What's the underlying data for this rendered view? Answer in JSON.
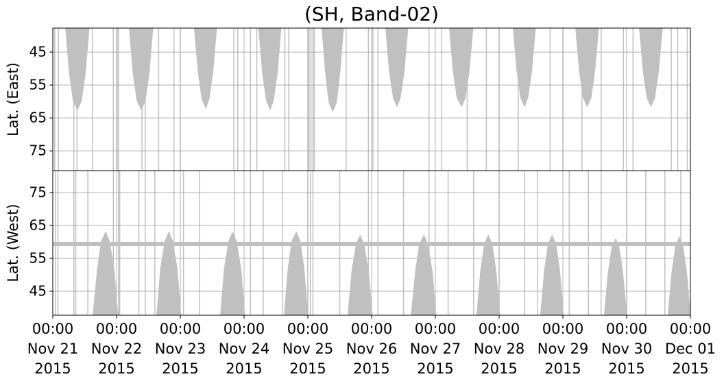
{
  "chart_data": [
    {
      "type": "coverage",
      "title": "(SH, Band-02)",
      "ylabel": "Lat. (East)",
      "ylim": [
        37.7,
        81
      ],
      "inverted": true,
      "yticks": [
        45,
        55,
        65,
        75
      ],
      "grid": true,
      "color": "#c0c0c0",
      "x": [
        0.2,
        0.26,
        0.32,
        0.385,
        0.45,
        0.51,
        0.57,
        null,
        1.2,
        1.26,
        1.32,
        1.39,
        1.45,
        1.51,
        1.57,
        null,
        2.22,
        2.28,
        2.34,
        2.4,
        2.45,
        2.51,
        2.57,
        null,
        3.23,
        3.29,
        3.35,
        3.41,
        3.46,
        3.52,
        3.58,
        null,
        4.22,
        4.28,
        4.33,
        4.39,
        4.45,
        4.5,
        4.56,
        null,
        5.22,
        5.28,
        5.34,
        5.4,
        5.45,
        5.51,
        5.57,
        null,
        6.22,
        6.28,
        6.34,
        6.41,
        6.47,
        6.53,
        6.59,
        null,
        7.22,
        7.28,
        7.34,
        7.4,
        7.45,
        7.51,
        7.57,
        null,
        8.2,
        8.26,
        8.32,
        8.38,
        8.44,
        8.5,
        8.56,
        null,
        9.2,
        9.26,
        9.32,
        9.38,
        9.44,
        9.5,
        9.56
      ],
      "values": [
        37.7,
        51.5,
        59.7,
        62.5,
        59.7,
        51.5,
        37.7,
        null,
        37.7,
        51.5,
        59.7,
        62.5,
        59.7,
        51.5,
        37.7,
        null,
        37.7,
        51.2,
        59.3,
        62,
        59.3,
        51.2,
        37.7,
        null,
        37.7,
        51.5,
        59.7,
        62.5,
        59.7,
        51.5,
        37.7,
        null,
        37.7,
        51.8,
        60.2,
        63,
        60.2,
        51.8,
        37.7,
        null,
        37.7,
        50.9,
        58.9,
        61.5,
        58.9,
        50.9,
        37.7,
        null,
        37.7,
        50.9,
        58.9,
        61.5,
        58.9,
        50.9,
        37.7,
        null,
        37.7,
        50.9,
        58.9,
        61.5,
        58.9,
        50.9,
        37.7,
        null,
        37.7,
        50.9,
        58.9,
        61.5,
        58.9,
        50.9,
        37.7,
        null,
        37.7,
        50.9,
        58.9,
        61.5,
        58.9,
        50.9,
        37.7
      ],
      "stripes": [
        0.03,
        0.09,
        0.33,
        0.38,
        0.62,
        0.95,
        1.01,
        1.03,
        1.4,
        1.45,
        1.66,
        1.9,
        2.0,
        2.84,
        2.9,
        3.1,
        3.2,
        3.64,
        3.7,
        4.0,
        4.02,
        4.05,
        4.08,
        4.1,
        4.6,
        4.95,
        5.02,
        5.1,
        5.9,
        6.1,
        6.5,
        6.8,
        7.0,
        7.3,
        7.8,
        8.0,
        8.3,
        8.6,
        8.95,
        9.1,
        9.7,
        9.8,
        9.95
      ]
    },
    {
      "type": "coverage",
      "ylabel": "Lat. (West)",
      "ylim": [
        37.7,
        81.7
      ],
      "yticks": [
        45,
        55,
        65,
        75
      ],
      "grid": true,
      "color": "#c0c0c0",
      "xlim": [
        0,
        10
      ],
      "xticks": [
        {
          "value": 0,
          "label": "00:00\nNov 21\n2015"
        },
        {
          "value": 1,
          "label": "00:00\nNov 22\n2015"
        },
        {
          "value": 2,
          "label": "00:00\nNov 23\n2015"
        },
        {
          "value": 3,
          "label": "00:00\nNov 24\n2015"
        },
        {
          "value": 4,
          "label": "00:00\nNov 25\n2015"
        },
        {
          "value": 5,
          "label": "00:00\nNov 26\n2015"
        },
        {
          "value": 6,
          "label": "00:00\nNov 27\n2015"
        },
        {
          "value": 7,
          "label": "00:00\nNov 28\n2015"
        },
        {
          "value": 8,
          "label": "00:00\nNov 29\n2015"
        },
        {
          "value": 9,
          "label": "00:00\nNov 30\n2015"
        },
        {
          "value": 10,
          "label": "00:00\nDec 01\n2015"
        }
      ],
      "x": [
        0.63,
        0.7,
        0.76,
        0.83,
        0.89,
        0.96,
        1.02,
        null,
        1.63,
        1.69,
        1.76,
        1.82,
        1.88,
        1.95,
        2.01,
        null,
        2.63,
        2.69,
        2.76,
        2.82,
        2.88,
        2.95,
        3.01,
        null,
        3.63,
        3.69,
        3.75,
        3.82,
        3.88,
        3.94,
        4.0,
        null,
        4.63,
        4.69,
        4.76,
        4.82,
        4.88,
        4.95,
        5.01,
        null,
        5.62,
        5.69,
        5.75,
        5.82,
        5.88,
        5.95,
        6.01,
        null,
        6.65,
        6.71,
        6.77,
        6.83,
        6.89,
        6.95,
        7.01,
        null,
        7.65,
        7.71,
        7.77,
        7.83,
        7.89,
        7.95,
        8.01,
        null,
        8.65,
        8.71,
        8.77,
        8.83,
        8.88,
        8.94,
        9.0,
        null,
        9.65,
        9.71,
        9.77,
        9.83,
        9.88,
        9.94,
        10.0
      ],
      "values": [
        37.7,
        51.8,
        60.2,
        63,
        60.2,
        51.8,
        37.7,
        null,
        37.7,
        51.8,
        60.2,
        63,
        60.2,
        51.8,
        37.7,
        null,
        37.7,
        51.8,
        60.2,
        63,
        60.2,
        51.8,
        37.7,
        null,
        37.7,
        51.8,
        60.2,
        63,
        60.2,
        51.8,
        37.7,
        null,
        37.7,
        51.2,
        59.3,
        62,
        59.3,
        51.2,
        37.7,
        null,
        37.7,
        51.2,
        59.3,
        62,
        59.3,
        51.2,
        37.7,
        null,
        37.7,
        51.2,
        59.3,
        62,
        59.3,
        51.2,
        37.7,
        null,
        37.7,
        51.2,
        59.3,
        62,
        59.3,
        51.2,
        37.7,
        null,
        37.7,
        50.6,
        58.4,
        61,
        58.4,
        50.6,
        37.7,
        null,
        37.7,
        50.9,
        58.9,
        61.5,
        58.9,
        50.9,
        37.7
      ],
      "band": 59.4,
      "stripes": [
        0.04,
        0.08,
        0.33,
        0.36,
        0.55,
        0.95,
        1.03,
        1.05,
        1.35,
        1.45,
        1.6,
        1.9,
        2.05,
        2.3,
        2.85,
        3.1,
        3.3,
        3.6,
        4.0,
        4.04,
        4.08,
        4.5,
        4.95,
        5.1,
        5.5,
        5.9,
        6.2,
        6.6,
        7.0,
        7.4,
        7.6,
        8.1,
        8.4,
        8.6,
        9.0,
        9.3,
        9.6,
        9.85
      ]
    }
  ]
}
